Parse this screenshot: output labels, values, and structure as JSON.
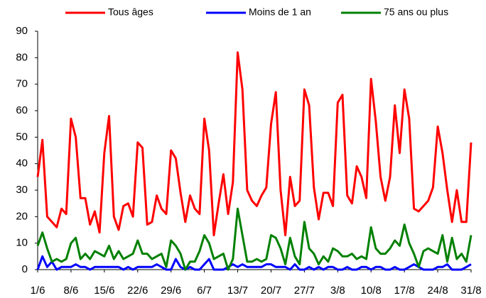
{
  "chart_data": {
    "type": "line",
    "categories": [
      "1/6",
      null,
      null,
      null,
      null,
      null,
      null,
      "8/6",
      null,
      null,
      null,
      null,
      null,
      null,
      "15/6",
      null,
      null,
      null,
      null,
      null,
      null,
      "22/6",
      null,
      null,
      null,
      null,
      null,
      null,
      "29/6",
      null,
      null,
      null,
      null,
      null,
      null,
      "6/7",
      null,
      null,
      null,
      null,
      null,
      null,
      "13/7",
      null,
      null,
      null,
      null,
      null,
      null,
      "20/7",
      null,
      null,
      null,
      null,
      null,
      null,
      "27/7",
      null,
      null,
      null,
      null,
      null,
      null,
      "3/8",
      null,
      null,
      null,
      null,
      null,
      null,
      "10/8",
      null,
      null,
      null,
      null,
      null,
      null,
      "17/8",
      null,
      null,
      null,
      null,
      null,
      null,
      "24/8",
      null,
      null,
      null,
      null,
      null,
      null,
      "31/8"
    ],
    "series": [
      {
        "name": "Tous âges",
        "color": "#ff0000",
        "values": [
          35,
          49,
          20,
          18,
          16,
          23,
          21,
          57,
          50,
          27,
          27,
          17,
          22,
          14,
          44,
          58,
          20,
          15,
          24,
          25,
          20,
          48,
          46,
          17,
          18,
          28,
          23,
          21,
          45,
          42,
          29,
          18,
          28,
          23,
          21,
          57,
          45,
          13,
          25,
          36,
          21,
          33,
          82,
          68,
          30,
          26,
          24,
          28,
          31,
          55,
          67,
          30,
          13,
          35,
          24,
          26,
          68,
          62,
          31,
          19,
          29,
          29,
          24,
          63,
          66,
          28,
          25,
          39,
          35,
          27,
          72,
          56,
          35,
          26,
          35,
          62,
          44,
          68,
          57,
          23,
          22,
          24,
          26,
          31,
          54,
          44,
          30,
          18,
          30,
          18,
          18,
          48
        ]
      },
      {
        "name": "Moins de 1 an",
        "color": "#0000ff",
        "values": [
          0,
          5,
          1,
          3,
          0,
          1,
          1,
          1,
          2,
          1,
          1,
          0,
          1,
          1,
          1,
          1,
          1,
          1,
          0,
          1,
          0,
          1,
          1,
          1,
          1,
          2,
          1,
          0,
          0,
          4,
          1,
          0,
          1,
          0,
          0,
          2,
          4,
          0,
          0,
          0,
          1,
          2,
          1,
          2,
          1,
          1,
          1,
          1,
          2,
          2,
          1,
          1,
          1,
          0,
          2,
          0,
          0,
          1,
          0,
          1,
          0,
          1,
          1,
          0,
          0,
          1,
          0,
          0,
          1,
          1,
          0,
          1,
          1,
          0,
          0,
          1,
          0,
          0,
          1,
          2,
          1,
          0,
          0,
          0,
          1,
          1,
          2,
          0,
          0,
          0,
          1,
          2
        ]
      },
      {
        "name": "75 ans ou plus",
        "color": "#008000",
        "values": [
          9,
          14,
          8,
          3,
          4,
          3,
          4,
          10,
          12,
          4,
          6,
          4,
          7,
          6,
          5,
          9,
          4,
          7,
          4,
          5,
          6,
          11,
          6,
          6,
          4,
          5,
          6,
          1,
          11,
          9,
          6,
          0,
          3,
          3,
          7,
          13,
          10,
          4,
          5,
          6,
          0,
          4,
          23,
          13,
          3,
          3,
          4,
          3,
          4,
          13,
          12,
          8,
          2,
          12,
          5,
          2,
          18,
          8,
          6,
          2,
          5,
          3,
          8,
          7,
          5,
          5,
          6,
          4,
          5,
          4,
          16,
          8,
          6,
          6,
          8,
          11,
          9,
          17,
          10,
          6,
          1,
          7,
          8,
          7,
          6,
          13,
          3,
          12,
          4,
          6,
          3,
          13
        ]
      }
    ],
    "ylim": [
      0,
      90
    ],
    "yticks": [
      0,
      10,
      20,
      30,
      40,
      50,
      60,
      70,
      80,
      90
    ],
    "legend": "top",
    "grid": false
  }
}
